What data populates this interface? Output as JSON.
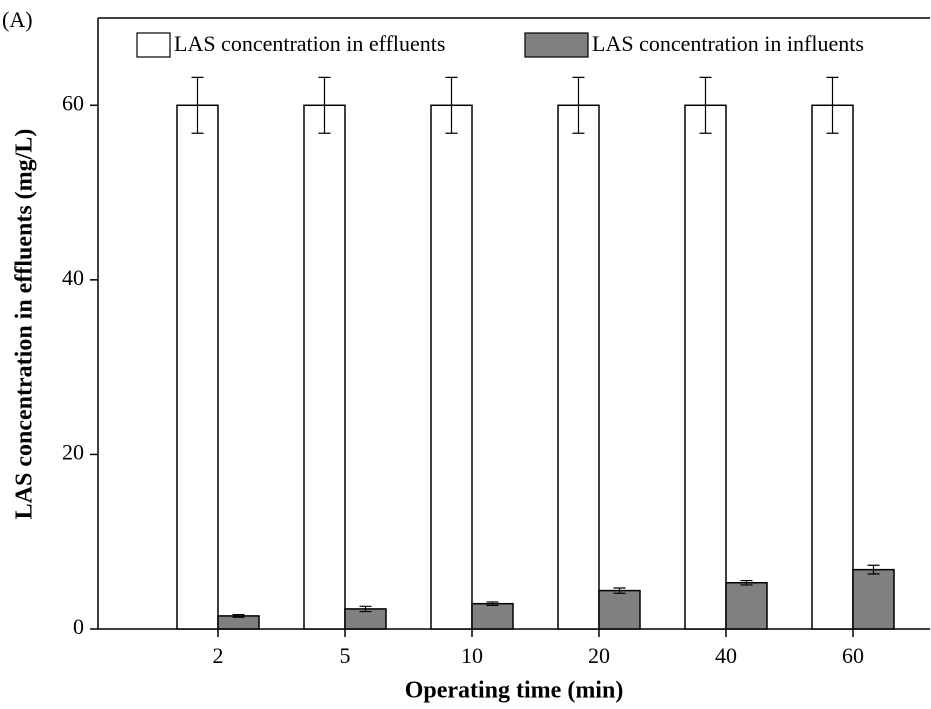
{
  "chart_data": {
    "type": "bar",
    "panel_label": "(A)",
    "x_label": "Operating time (min)",
    "y_label": "LAS concentration in effluents (mg/L)",
    "categories": [
      "2",
      "5",
      "10",
      "20",
      "40",
      "60"
    ],
    "series": [
      {
        "name": "LAS concentration in effluents",
        "color": "#ffffff",
        "values": [
          60,
          60,
          60,
          60,
          60,
          60
        ],
        "errors": [
          3.2,
          3.2,
          3.2,
          3.2,
          3.2,
          3.2
        ]
      },
      {
        "name": "LAS concentration in influents",
        "color": "#808080",
        "values": [
          1.5,
          2.3,
          2.9,
          4.4,
          5.3,
          6.8
        ],
        "errors": [
          0.15,
          0.3,
          0.2,
          0.3,
          0.25,
          0.5
        ]
      }
    ],
    "ylim": [
      0,
      70
    ],
    "yticks": [
      0,
      20,
      40,
      60
    ]
  }
}
